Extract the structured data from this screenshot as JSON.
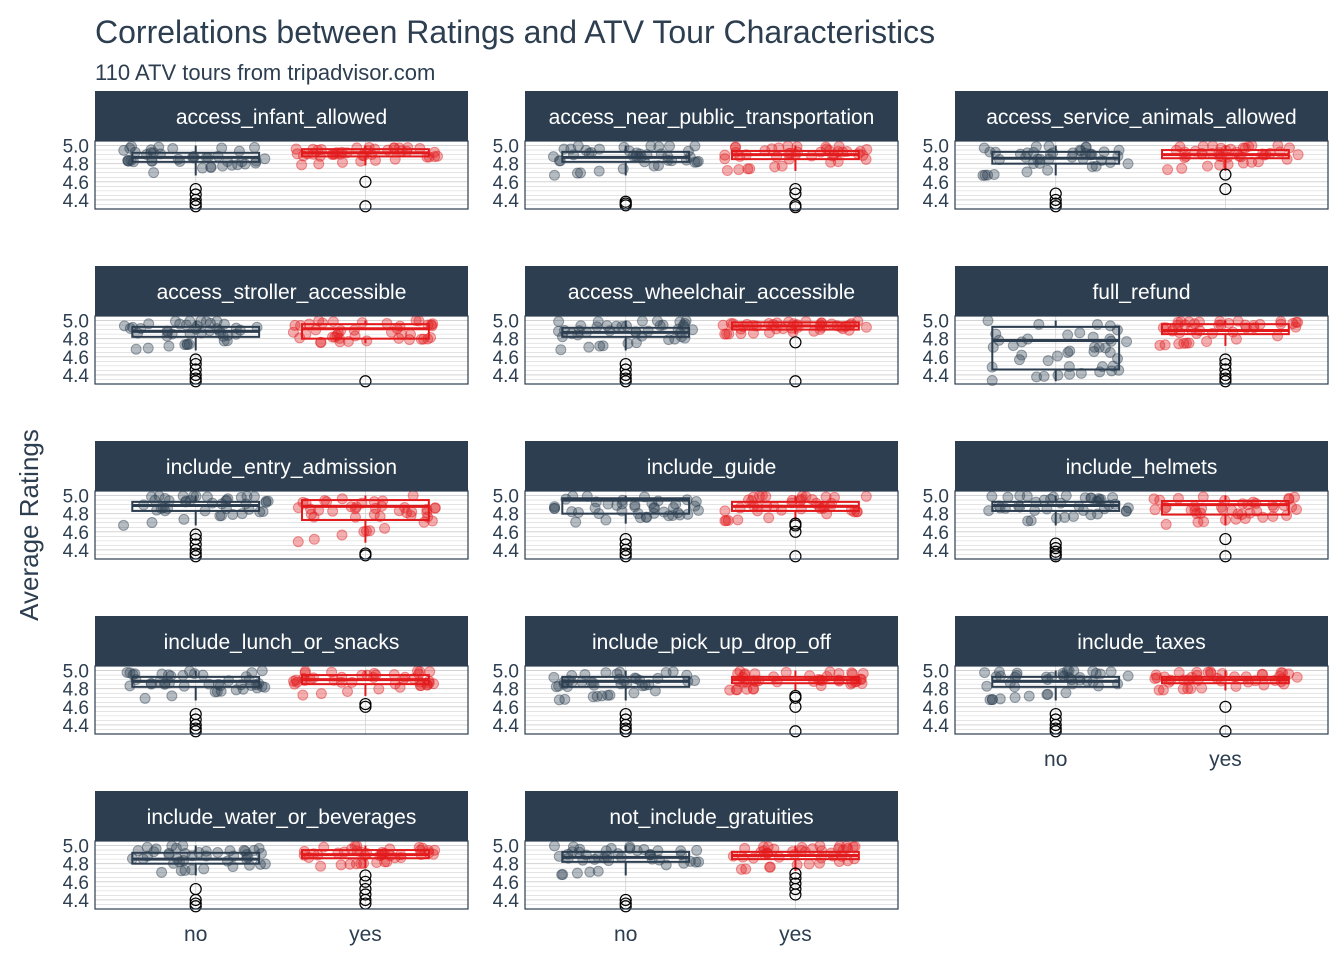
{
  "colors": {
    "no": "#2c3e50",
    "yes": "#e31a1c",
    "strip_bg": "#2c3e50",
    "strip_text": "#ffffff",
    "grid": "#d3d3d3",
    "text": "#2c3e50"
  },
  "chart_data": {
    "type": "boxplot",
    "title": "Correlations between Ratings and ATV Tour Characteristics",
    "subtitle": "110 ATV tours from tripadvisor.com",
    "ylabel": "Average Ratings",
    "xlabel": "",
    "categories": [
      "no",
      "yes"
    ],
    "y_ticks": [
      "4.4",
      "4.6",
      "4.8",
      "5.0"
    ],
    "ylim": [
      4.3,
      5.05
    ],
    "facet_layout": "5 rows x 3 cols, shared y axis",
    "grid": true,
    "panels": [
      {
        "name": "access_infant_allowed",
        "no": {
          "q1": 4.82,
          "median": 4.87,
          "q3": 4.92,
          "whisker_low": 4.67,
          "whisker_high": 5.0,
          "outliers": [
            4.52,
            4.46,
            4.4,
            4.36,
            4.33
          ]
        },
        "yes": {
          "q1": 4.88,
          "median": 4.92,
          "q3": 4.96,
          "whisker_low": 4.78,
          "whisker_high": 5.0,
          "outliers": [
            4.6,
            4.33
          ]
        }
      },
      {
        "name": "access_near_public_transportation",
        "no": {
          "q1": 4.82,
          "median": 4.87,
          "q3": 4.93,
          "whisker_low": 4.67,
          "whisker_high": 5.0,
          "outliers": [
            4.38,
            4.36,
            4.34
          ]
        },
        "yes": {
          "q1": 4.85,
          "median": 4.9,
          "q3": 4.94,
          "whisker_low": 4.72,
          "whisker_high": 5.0,
          "outliers": [
            4.52,
            4.47,
            4.34,
            4.32
          ]
        }
      },
      {
        "name": "access_service_animals_allowed",
        "no": {
          "q1": 4.8,
          "median": 4.86,
          "q3": 4.93,
          "whisker_low": 4.67,
          "whisker_high": 5.0,
          "outliers": [
            4.47,
            4.4,
            4.36,
            4.33
          ]
        },
        "yes": {
          "q1": 4.86,
          "median": 4.9,
          "q3": 4.95,
          "whisker_low": 4.72,
          "whisker_high": 5.0,
          "outliers": [
            4.68,
            4.52
          ]
        }
      },
      {
        "name": "access_stroller_accessible",
        "no": {
          "q1": 4.82,
          "median": 4.88,
          "q3": 4.93,
          "whisker_low": 4.67,
          "whisker_high": 5.0,
          "outliers": [
            4.57,
            4.52,
            4.46,
            4.4,
            4.36,
            4.33
          ]
        },
        "yes": {
          "q1": 4.8,
          "median": 4.91,
          "q3": 4.96,
          "whisker_low": 4.75,
          "whisker_high": 5.0,
          "outliers": [
            4.33
          ]
        }
      },
      {
        "name": "access_wheelchair_accessible",
        "no": {
          "q1": 4.82,
          "median": 4.87,
          "q3": 4.92,
          "whisker_low": 4.67,
          "whisker_high": 5.0,
          "outliers": [
            4.52,
            4.46,
            4.4,
            4.36,
            4.33
          ]
        },
        "yes": {
          "q1": 4.9,
          "median": 4.94,
          "q3": 4.98,
          "whisker_low": 4.85,
          "whisker_high": 5.0,
          "outliers": [
            4.76,
            4.33
          ]
        }
      },
      {
        "name": "full_refund",
        "no": {
          "q1": 4.46,
          "median": 4.78,
          "q3": 4.93,
          "whisker_low": 4.33,
          "whisker_high": 5.0,
          "outliers": []
        },
        "yes": {
          "q1": 4.85,
          "median": 4.89,
          "q3": 4.96,
          "whisker_low": 4.72,
          "whisker_high": 5.0,
          "outliers": [
            4.57,
            4.52,
            4.46,
            4.4,
            4.36,
            4.33
          ]
        }
      },
      {
        "name": "include_entry_admission",
        "no": {
          "q1": 4.83,
          "median": 4.89,
          "q3": 4.93,
          "whisker_low": 4.67,
          "whisker_high": 5.0,
          "outliers": [
            4.57,
            4.52,
            4.46,
            4.4,
            4.36,
            4.33
          ]
        },
        "yes": {
          "q1": 4.73,
          "median": 4.88,
          "q3": 4.95,
          "whisker_low": 4.48,
          "whisker_high": 5.0,
          "outliers": [
            4.36,
            4.34
          ]
        }
      },
      {
        "name": "include_guide",
        "no": {
          "q1": 4.8,
          "median": 4.95,
          "q3": 4.97,
          "whisker_low": 4.69,
          "whisker_high": 5.0,
          "outliers": [
            4.52,
            4.46,
            4.4,
            4.36,
            4.33
          ]
        },
        "yes": {
          "q1": 4.83,
          "median": 4.88,
          "q3": 4.93,
          "whisker_low": 4.72,
          "whisker_high": 5.0,
          "outliers": [
            4.69,
            4.67,
            4.6,
            4.33
          ]
        }
      },
      {
        "name": "include_helmets",
        "no": {
          "q1": 4.83,
          "median": 4.89,
          "q3": 4.93,
          "whisker_low": 4.67,
          "whisker_high": 5.0,
          "outliers": [
            4.47,
            4.42,
            4.38,
            4.35,
            4.33
          ]
        },
        "yes": {
          "q1": 4.79,
          "median": 4.9,
          "q3": 4.94,
          "whisker_low": 4.67,
          "whisker_high": 5.0,
          "outliers": [
            4.52,
            4.33
          ]
        }
      },
      {
        "name": "include_lunch_or_snacks",
        "no": {
          "q1": 4.82,
          "median": 4.88,
          "q3": 4.93,
          "whisker_low": 4.67,
          "whisker_high": 5.0,
          "outliers": [
            4.52,
            4.46,
            4.4,
            4.36,
            4.33
          ]
        },
        "yes": {
          "q1": 4.85,
          "median": 4.9,
          "q3": 4.95,
          "whisker_low": 4.72,
          "whisker_high": 5.0,
          "outliers": [
            4.63,
            4.6
          ]
        }
      },
      {
        "name": "include_pick_up_drop_off",
        "no": {
          "q1": 4.82,
          "median": 4.88,
          "q3": 4.93,
          "whisker_low": 4.67,
          "whisker_high": 5.0,
          "outliers": [
            4.52,
            4.46,
            4.4,
            4.36,
            4.33
          ]
        },
        "yes": {
          "q1": 4.86,
          "median": 4.9,
          "q3": 4.93,
          "whisker_low": 4.78,
          "whisker_high": 5.0,
          "outliers": [
            4.72,
            4.7,
            4.6,
            4.33
          ]
        }
      },
      {
        "name": "include_taxes",
        "no": {
          "q1": 4.82,
          "median": 4.88,
          "q3": 4.93,
          "whisker_low": 4.67,
          "whisker_high": 5.0,
          "outliers": [
            4.52,
            4.46,
            4.4,
            4.36,
            4.33
          ]
        },
        "yes": {
          "q1": 4.86,
          "median": 4.9,
          "q3": 4.93,
          "whisker_low": 4.78,
          "whisker_high": 5.0,
          "outliers": [
            4.6,
            4.33
          ]
        }
      },
      {
        "name": "include_water_or_beverages",
        "no": {
          "q1": 4.8,
          "median": 4.85,
          "q3": 4.92,
          "whisker_low": 4.67,
          "whisker_high": 5.0,
          "outliers": [
            4.52,
            4.4,
            4.36,
            4.33
          ]
        },
        "yes": {
          "q1": 4.86,
          "median": 4.9,
          "q3": 4.95,
          "whisker_low": 4.75,
          "whisker_high": 5.0,
          "outliers": [
            4.67,
            4.6,
            4.52,
            4.46,
            4.4,
            4.36
          ]
        }
      },
      {
        "name": "not_include_gratuities",
        "no": {
          "q1": 4.82,
          "median": 4.87,
          "q3": 4.93,
          "whisker_low": 4.67,
          "whisker_high": 5.0,
          "outliers": [
            4.4,
            4.36,
            4.33
          ]
        },
        "yes": {
          "q1": 4.85,
          "median": 4.89,
          "q3": 4.93,
          "whisker_low": 4.72,
          "whisker_high": 5.0,
          "outliers": [
            4.69,
            4.64,
            4.58,
            4.52,
            4.46
          ]
        }
      }
    ]
  }
}
